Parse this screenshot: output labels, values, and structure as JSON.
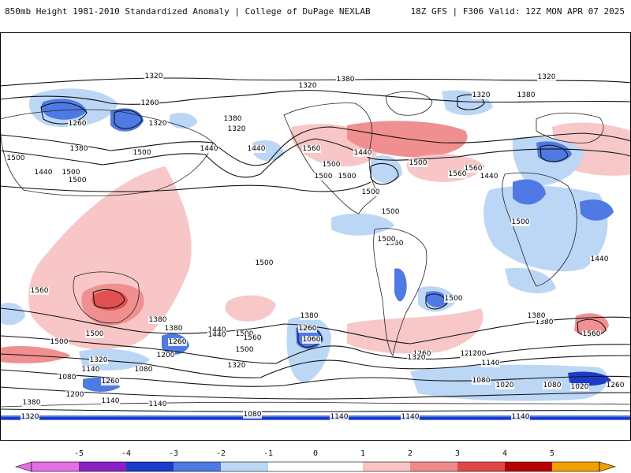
{
  "header": {
    "title_left": "850mb Height 1981-2010 Standardized Anomaly | College of DuPage NEXLAB",
    "title_right": "18Z GFS | F306 Valid: 12Z MON APR 07 2025"
  },
  "colors": {
    "neg5": "#e46ee4",
    "neg4": "#8a1fc4",
    "neg3": "#1c3bc9",
    "neg2": "#4f7ae3",
    "neg1": "#bcd6f5",
    "zero": "#ffffff",
    "pos1": "#f8c4c4",
    "pos2": "#f08a8a",
    "pos3": "#e04848",
    "pos4": "#b80000",
    "pos5": "#f0a000"
  },
  "colorbar": {
    "ticks": [
      "-5",
      "-4",
      "-3",
      "-2",
      "-1",
      "0",
      "1",
      "2",
      "3",
      "4",
      "5"
    ]
  },
  "contour_labels": [
    "1320",
    "1320",
    "1380",
    "1320",
    "1380",
    "1260",
    "1260",
    "1320",
    "1320",
    "1380",
    "1320",
    "1440",
    "1500",
    "1440",
    "1560",
    "1500",
    "1500",
    "1560",
    "1500",
    "1500",
    "1440",
    "1380",
    "1500",
    "1560",
    "1440",
    "1440",
    "1500",
    "1500",
    "1500",
    "1500",
    "1560",
    "1560",
    "1500",
    "1500",
    "1380",
    "1440",
    "1380",
    "1500",
    "1260",
    "1200",
    "1320",
    "1140",
    "1080",
    "1200",
    "1260",
    "1140",
    "1380",
    "1320",
    "1140",
    "1080",
    "1380",
    "1260",
    "1060",
    "1440",
    "1320",
    "1260",
    "1200",
    "1140",
    "1080",
    "1380",
    "1560",
    "1020",
    "1080",
    "1020",
    "1260",
    "1140",
    "1140",
    "1140",
    "1080",
    "1320",
    "1560",
    "1500",
    "1500",
    "1500",
    "1440",
    "1380",
    "1200",
    "1500",
    "1500"
  ]
}
